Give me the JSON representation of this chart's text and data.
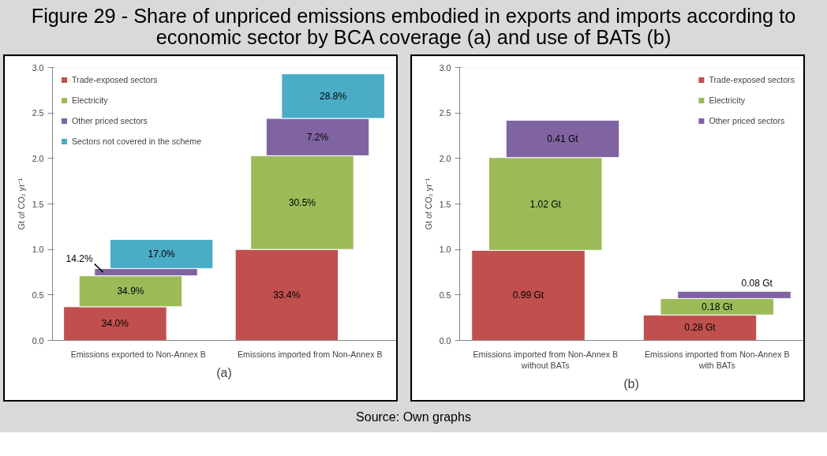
{
  "chart_data": [
    {
      "type": "bar",
      "stacked": true,
      "title": "Figure 29 - Share of unpriced emissions embodied in exports and imports according to economic sector by BCA coverage (a) and use of BATs (b)",
      "xlabel": "(a)",
      "ylabel": "Gt of CO₂ yr⁻¹",
      "categories": [
        "Emissions exported to Non-Annex B",
        "Emissions imported from Non-Annex B"
      ],
      "series": [
        {
          "name": "Trade-exposed sectors",
          "color": "#c0504d",
          "values": [
            0.37,
            1.0
          ]
        },
        {
          "name": "Electricity",
          "color": "#9bbb59",
          "values": [
            0.34,
            1.03
          ]
        },
        {
          "name": "Other priced sectors",
          "color": "#8064a2",
          "values": [
            0.08,
            0.41
          ]
        },
        {
          "name": "Sectors not covered in the scheme",
          "color": "#4bacc6",
          "values": [
            0.32,
            0.49
          ]
        }
      ],
      "annotations": [
        "34.0%",
        "34.9%",
        "14.2%",
        "17.0%",
        "33.4%",
        "30.5%",
        "7.2%",
        "28.8%"
      ],
      "ylim": [
        0,
        3
      ],
      "yticks": [
        {
          "value": 0,
          "label": "0.0"
        },
        {
          "value": 0.5,
          "label": "0.5"
        },
        {
          "value": 1,
          "label": "1.0"
        },
        {
          "value": 1.5,
          "label": "1.5"
        },
        {
          "value": 2,
          "label": "2.0"
        },
        {
          "value": 2.5,
          "label": "2.5"
        },
        {
          "value": 3,
          "label": "3.0"
        }
      ],
      "legend": "top left",
      "grid": false
    },
    {
      "type": "bar",
      "stacked": true,
      "xlabel": "(b)",
      "ylabel": "Gt of CO₂ yr⁻¹",
      "categories": [
        "Emissions imported from Non-Annex B\nwithout BATs",
        "Emissions imported from Non-Annex B\nwith BATs"
      ],
      "series": [
        {
          "name": "Trade-exposed sectors",
          "color": "#c0504d",
          "values": [
            0.99,
            0.28
          ],
          "value_labels": [
            "0.99 Gt",
            "0.28 Gt"
          ]
        },
        {
          "name": "Electricity",
          "color": "#9bbb59",
          "values": [
            1.02,
            0.18
          ],
          "value_labels": [
            "1.02 Gt",
            "0.18 Gt"
          ]
        },
        {
          "name": "Other priced sectors",
          "color": "#8064a2",
          "values": [
            0.41,
            0.08
          ],
          "value_labels": [
            "0.41 Gt",
            "0.08 Gt"
          ]
        }
      ],
      "ylim": [
        0,
        3
      ],
      "yticks": [
        {
          "value": 0,
          "label": "0.0"
        },
        {
          "value": 0.5,
          "label": "0.5"
        },
        {
          "value": 1,
          "label": "1.0"
        },
        {
          "value": 1.5,
          "label": "1.5"
        },
        {
          "value": 2,
          "label": "2.0"
        },
        {
          "value": 2.5,
          "label": "2.5"
        },
        {
          "value": 3,
          "label": "3.0"
        }
      ],
      "legend": "top right",
      "grid": false,
      "annotations": [
        "Source: Own graphs"
      ]
    }
  ]
}
